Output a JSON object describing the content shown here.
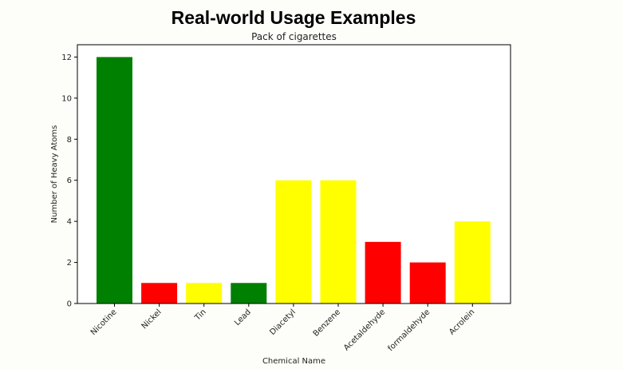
{
  "page": {
    "heading": "Real-world Usage Examples"
  },
  "chart_data": {
    "type": "bar",
    "title": "Pack of cigarettes",
    "xlabel": "Chemical Name",
    "ylabel": "Number of Heavy Atoms",
    "categories": [
      "Nicotine",
      "Nickel",
      "Tin",
      "Lead",
      "Diacetyl",
      "Benzene",
      "Acetaldehyde",
      "formaldehyde",
      "Acrolein"
    ],
    "values": [
      12,
      1,
      1,
      1,
      6,
      6,
      3,
      2,
      4
    ],
    "bar_colors": [
      "#008000",
      "#ff0000",
      "#ffff00",
      "#008000",
      "#ffff00",
      "#ffff00",
      "#ff0000",
      "#ff0000",
      "#ffff00"
    ],
    "ylim": [
      0,
      12.6
    ],
    "yticks": [
      0,
      2,
      4,
      6,
      8,
      10,
      12
    ],
    "grid": false,
    "legend": "none"
  }
}
